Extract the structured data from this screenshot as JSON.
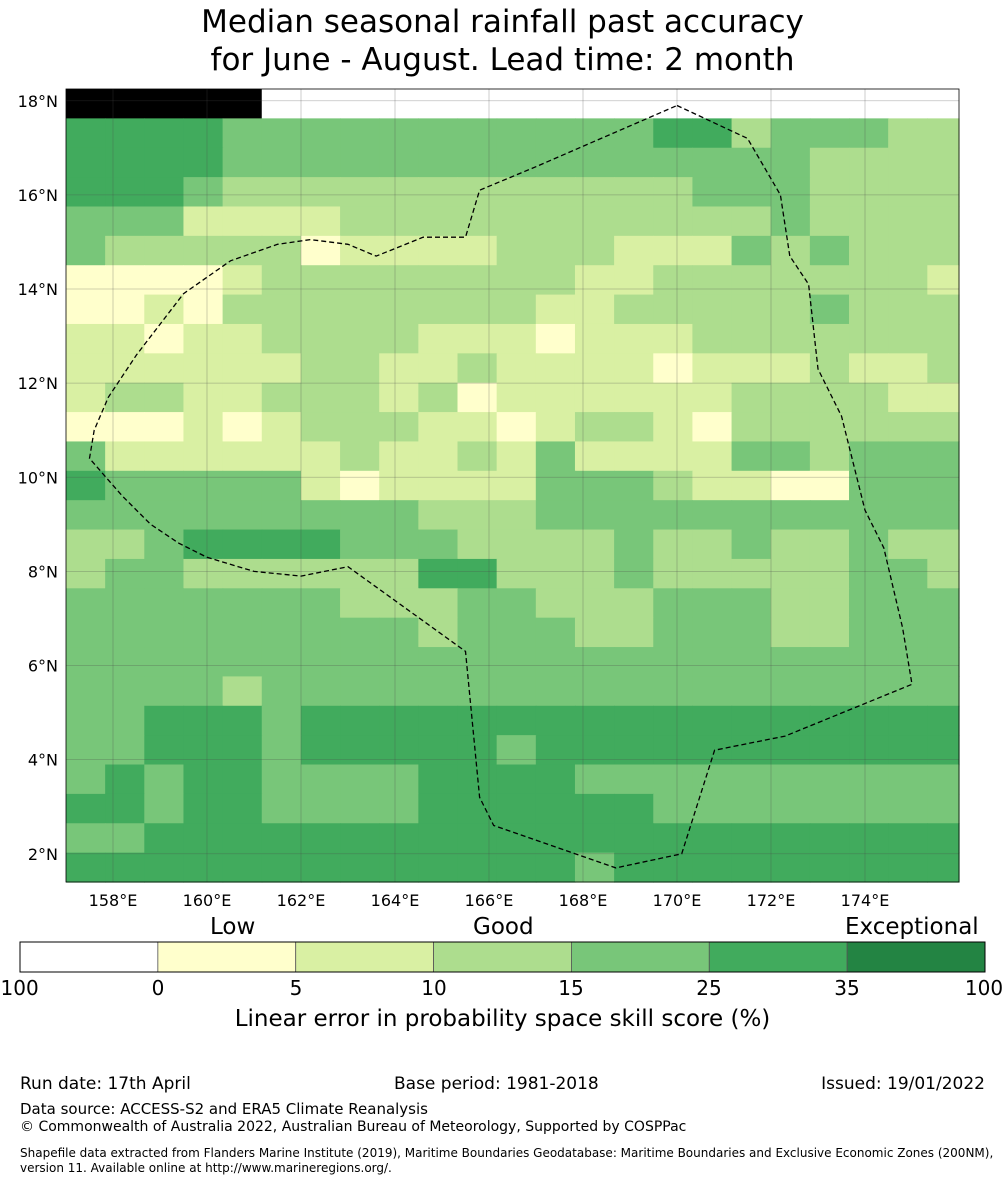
{
  "title": {
    "line1": "Median seasonal rainfall past accuracy",
    "line2": "for June - August. Lead time: 2 month"
  },
  "map": {
    "lat_ticks": [
      "18°N",
      "16°N",
      "14°N",
      "12°N",
      "10°N",
      "8°N",
      "6°N",
      "4°N",
      "2°N"
    ],
    "lon_ticks": [
      "158°E",
      "160°E",
      "162°E",
      "164°E",
      "166°E",
      "168°E",
      "170°E",
      "172°E",
      "174°E"
    ],
    "lat_values": [
      18,
      16,
      14,
      12,
      10,
      8,
      6,
      4,
      2
    ],
    "lon_values": [
      158,
      160,
      162,
      164,
      166,
      168,
      170,
      172,
      174
    ],
    "extent": {
      "lon_min": 157,
      "lon_max": 176,
      "lat_min": 1.4,
      "lat_max": 18.25
    },
    "grid_step_deg": 0.833,
    "eez_boundary": [
      [
        170,
        17.9
      ],
      [
        171.5,
        17.2
      ],
      [
        172.2,
        16
      ],
      [
        172.4,
        14.7
      ],
      [
        172.8,
        14.1
      ],
      [
        173.0,
        12.3
      ],
      [
        173.5,
        11.3
      ],
      [
        174.0,
        9.3
      ],
      [
        174.4,
        8.5
      ],
      [
        174.8,
        6.8
      ],
      [
        175.0,
        5.6
      ],
      [
        172.3,
        4.5
      ],
      [
        170.8,
        4.2
      ],
      [
        170.1,
        2.0
      ],
      [
        168.7,
        1.7
      ],
      [
        166.1,
        2.6
      ],
      [
        165.8,
        3.2
      ],
      [
        165.5,
        6.3
      ],
      [
        163.0,
        8.1
      ],
      [
        162.0,
        7.9
      ],
      [
        161.0,
        8.0
      ],
      [
        160.0,
        8.3
      ],
      [
        159.4,
        8.6
      ],
      [
        158.8,
        9.0
      ],
      [
        158.2,
        9.6
      ],
      [
        157.5,
        10.4
      ],
      [
        157.6,
        11.0
      ],
      [
        157.9,
        11.7
      ],
      [
        158.5,
        12.6
      ],
      [
        159.5,
        13.9
      ],
      [
        160.5,
        14.6
      ],
      [
        161.5,
        14.95
      ],
      [
        162.2,
        15.05
      ],
      [
        163.0,
        14.95
      ],
      [
        163.6,
        14.7
      ],
      [
        164.6,
        15.1
      ],
      [
        165.5,
        15.1
      ],
      [
        165.8,
        16.1
      ],
      [
        167.0,
        16.6
      ],
      [
        170,
        17.9
      ]
    ],
    "skill_classes": [
      "99999000000000000000000",
      "55554444444444455344433",
      "55554444444444444443333",
      "55543333333333334443333",
      "44422223333333333343333",
      "43333312222333222434333",
      "11112333333332233333332",
      "11213333333322333334333",
      "22122333322212223333333",
      "22222233223222212223223",
      "23322333231222222333322",
      "11121233322123321333333",
      "42222223223242222443444",
      "54444421222244432211444",
      "44444444433344444444444",
      "33455554443333433433433",
      "34433333355333433333443",
      "44444443334433344433444",
      "44444444434443344433444",
      "44444444444444444444444",
      "44443444444444444444444",
      "44555455555555555555555",
      "44555455555455555555555",
      "45455444455554444444444",
      "55455444455555544444444",
      "44555555555555555555555",
      "55555555555554555555555"
    ]
  },
  "colorbar": {
    "colors": [
      "#ffffff",
      "#ffffcc",
      "#d9f0a3",
      "#addd8e",
      "#78c679",
      "#41ab5d",
      "#238443"
    ],
    "ticks": [
      "-100",
      "0",
      "5",
      "10",
      "15",
      "25",
      "35",
      "100"
    ],
    "words": {
      "low": "Low",
      "good": "Good",
      "exceptional": "Exceptional"
    },
    "label": "Linear error in probability space skill score (%)"
  },
  "footer": {
    "run_date": "Run date: 17th April",
    "base_period": "Base period: 1981-2018",
    "issued": "Issued: 19/01/2022",
    "data_source": "Data source: ACCESS-S2 and ERA5 Climate Reanalysis",
    "copyright": "© Commonwealth of Australia 2022, Australian Bureau of Meteorology, Supported by COSPPac",
    "shapefile": "Shapefile data extracted from Flanders Marine Institute (2019), Maritime Boundaries Geodatabase: Maritime Boundaries and Exclusive Economic Zones (200NM), version 11. Available online at http://www.marineregions.org/."
  }
}
